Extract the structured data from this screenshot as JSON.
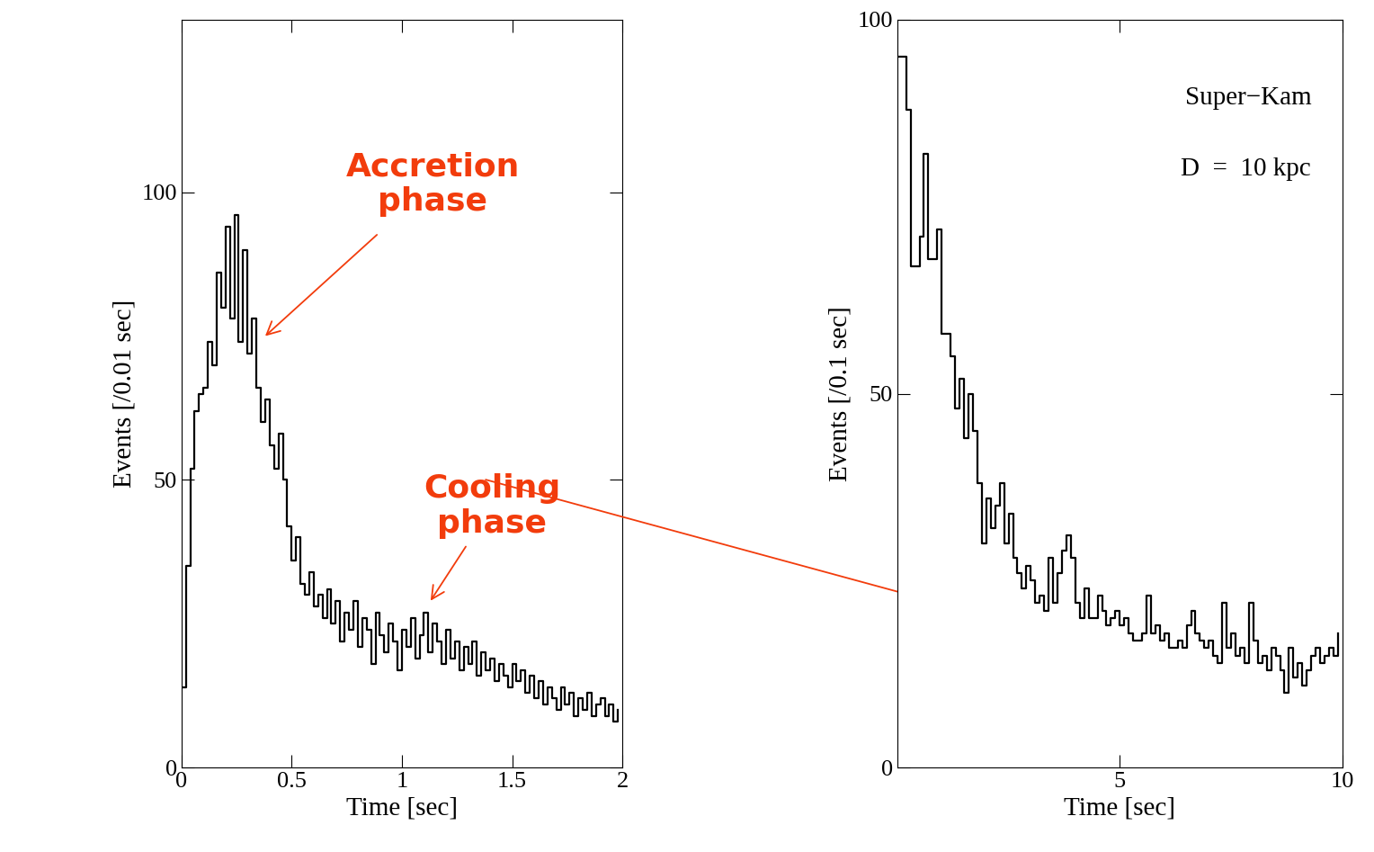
{
  "chart_data": [
    {
      "type": "line",
      "line_style": "steps",
      "color": "#000000",
      "x_label": "Time [sec]",
      "y_label": "Events [/0.01 sec]",
      "xlim": [
        0,
        2
      ],
      "xticks": [
        0,
        0.5,
        1,
        1.5,
        2
      ],
      "ylim": [
        0,
        130
      ],
      "yticks": [
        0,
        50,
        100
      ],
      "annotations": [
        "Accretion\nphase",
        "Cooling\nphase"
      ],
      "x": [
        0.0,
        0.02,
        0.04,
        0.06,
        0.08,
        0.1,
        0.12,
        0.14,
        0.16,
        0.18,
        0.2,
        0.22,
        0.24,
        0.26,
        0.28,
        0.3,
        0.32,
        0.34,
        0.36,
        0.38,
        0.4,
        0.42,
        0.44,
        0.46,
        0.48,
        0.5,
        0.52,
        0.54,
        0.56,
        0.58,
        0.6,
        0.62,
        0.64,
        0.66,
        0.68,
        0.7,
        0.72,
        0.74,
        0.76,
        0.78,
        0.8,
        0.82,
        0.84,
        0.86,
        0.88,
        0.9,
        0.92,
        0.94,
        0.96,
        0.98,
        1.0,
        1.02,
        1.04,
        1.06,
        1.08,
        1.1,
        1.12,
        1.14,
        1.16,
        1.18,
        1.2,
        1.22,
        1.24,
        1.26,
        1.28,
        1.3,
        1.32,
        1.34,
        1.36,
        1.38,
        1.4,
        1.42,
        1.44,
        1.46,
        1.48,
        1.5,
        1.52,
        1.54,
        1.56,
        1.58,
        1.6,
        1.62,
        1.64,
        1.66,
        1.68,
        1.7,
        1.72,
        1.74,
        1.76,
        1.78,
        1.8,
        1.82,
        1.84,
        1.86,
        1.88,
        1.9,
        1.92,
        1.94,
        1.96,
        1.98
      ],
      "values": [
        14,
        35,
        52,
        62,
        65,
        66,
        74,
        70,
        86,
        80,
        94,
        78,
        96,
        74,
        90,
        72,
        78,
        66,
        60,
        64,
        56,
        52,
        58,
        50,
        42,
        36,
        40,
        32,
        30,
        34,
        28,
        30,
        26,
        31,
        25,
        29,
        22,
        27,
        24,
        29,
        21,
        26,
        24,
        18,
        27,
        23,
        20,
        25,
        22,
        17,
        24,
        21,
        26,
        19,
        23,
        27,
        20,
        25,
        22,
        18,
        24,
        19,
        22,
        17,
        21,
        18,
        22,
        16,
        20,
        17,
        19,
        15,
        18,
        16,
        14,
        18,
        15,
        17,
        13,
        16,
        12,
        15,
        11,
        14,
        12,
        10,
        14,
        11,
        13,
        9,
        12,
        10,
        13,
        9,
        11,
        12,
        9,
        11,
        8,
        10
      ]
    },
    {
      "type": "line",
      "line_style": "steps",
      "color": "#000000",
      "x_label": "Time [sec]",
      "y_label": "Events [/0.1 sec]",
      "xlim": [
        0,
        10
      ],
      "xticks": [
        5,
        10
      ],
      "ylim": [
        0,
        100
      ],
      "yticks": [
        0,
        50,
        100
      ],
      "annotations": [
        "Super−Kam",
        "D  =  10 kpc"
      ],
      "x": [
        0.0,
        0.1,
        0.2,
        0.3,
        0.4,
        0.5,
        0.6,
        0.7,
        0.8,
        0.9,
        1.0,
        1.1,
        1.2,
        1.3,
        1.4,
        1.5,
        1.6,
        1.7,
        1.8,
        1.9,
        2.0,
        2.1,
        2.2,
        2.3,
        2.4,
        2.5,
        2.6,
        2.7,
        2.8,
        2.9,
        3.0,
        3.1,
        3.2,
        3.3,
        3.4,
        3.5,
        3.6,
        3.7,
        3.8,
        3.9,
        4.0,
        4.1,
        4.2,
        4.3,
        4.4,
        4.5,
        4.6,
        4.7,
        4.8,
        4.9,
        5.0,
        5.1,
        5.2,
        5.3,
        5.4,
        5.5,
        5.6,
        5.7,
        5.8,
        5.9,
        6.0,
        6.1,
        6.2,
        6.3,
        6.4,
        6.5,
        6.6,
        6.7,
        6.8,
        6.9,
        7.0,
        7.1,
        7.2,
        7.3,
        7.4,
        7.5,
        7.6,
        7.7,
        7.8,
        7.9,
        8.0,
        8.1,
        8.2,
        8.3,
        8.4,
        8.5,
        8.6,
        8.7,
        8.8,
        8.9,
        9.0,
        9.1,
        9.2,
        9.3,
        9.4,
        9.5,
        9.6,
        9.7,
        9.8,
        9.9
      ],
      "values": [
        95,
        95,
        88,
        67,
        67,
        71,
        82,
        68,
        68,
        72,
        58,
        58,
        55,
        48,
        52,
        44,
        50,
        45,
        38,
        30,
        36,
        32,
        35,
        38,
        30,
        34,
        28,
        26,
        24,
        27,
        25,
        22,
        23,
        21,
        28,
        22,
        26,
        29,
        31,
        28,
        22,
        20,
        24,
        20,
        20,
        23,
        21,
        19,
        20,
        21,
        19,
        20,
        18,
        17,
        17,
        18,
        23,
        18,
        19,
        17,
        18,
        16,
        16,
        17,
        16,
        19,
        21,
        18,
        17,
        16,
        17,
        15,
        14,
        22,
        16,
        18,
        15,
        16,
        14,
        22,
        17,
        14,
        15,
        13,
        16,
        15,
        13,
        10,
        16,
        12,
        14,
        11,
        13,
        15,
        16,
        14,
        15,
        16,
        15,
        18
      ]
    }
  ]
}
